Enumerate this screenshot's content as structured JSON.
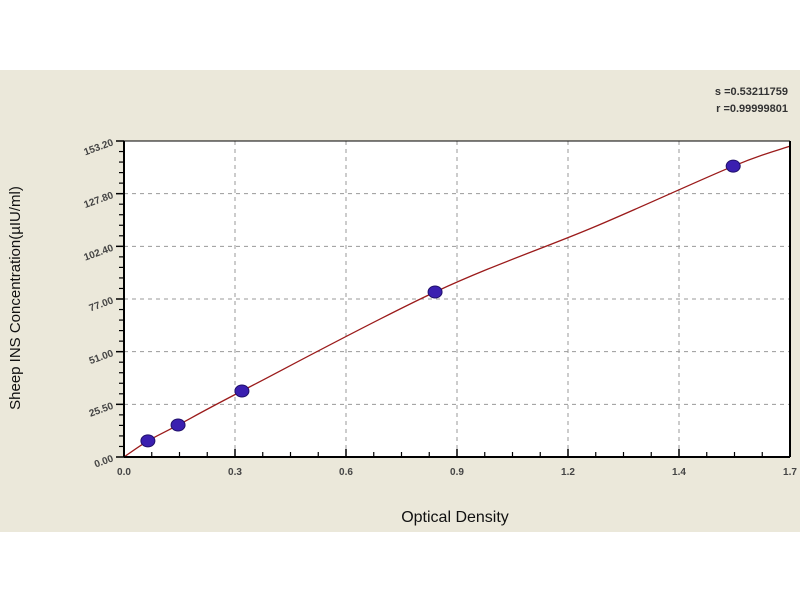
{
  "stats": {
    "s_label": "s =0.53211759",
    "r_label": "r =0.99999801"
  },
  "chart_data": {
    "type": "scatter",
    "title": "",
    "xlabel": "Optical Density",
    "ylabel": "Sheep INS Concentration(µIU/ml)",
    "xlim": [
      0,
      1.7
    ],
    "ylim": [
      0,
      153.2
    ],
    "x_ticks": [
      "0.0",
      "0.3",
      "0.6",
      "0.9",
      "1.2",
      "1.4",
      "1.7"
    ],
    "y_ticks": [
      "0.00",
      "25.50",
      "51.00",
      "77.00",
      "102.40",
      "127.80",
      "153.20"
    ],
    "grid": true,
    "points": [
      {
        "x": 0.061,
        "y": 7.8
      },
      {
        "x": 0.138,
        "y": 15.5
      },
      {
        "x": 0.301,
        "y": 32.0
      },
      {
        "x": 0.794,
        "y": 80.0
      },
      {
        "x": 1.555,
        "y": 141.0
      }
    ],
    "fit_curve": [
      [
        0,
        0
      ],
      [
        0.061,
        7.8
      ],
      [
        0.138,
        15.5
      ],
      [
        0.301,
        32.0
      ],
      [
        0.794,
        80.0
      ],
      [
        1.2,
        111.5
      ],
      [
        1.555,
        141.0
      ],
      [
        1.7,
        150.7
      ]
    ],
    "colors": {
      "points": "#3a1fb0",
      "curve": "#9b1b1b",
      "grid": "#999999",
      "background": "#ebe8da"
    }
  }
}
